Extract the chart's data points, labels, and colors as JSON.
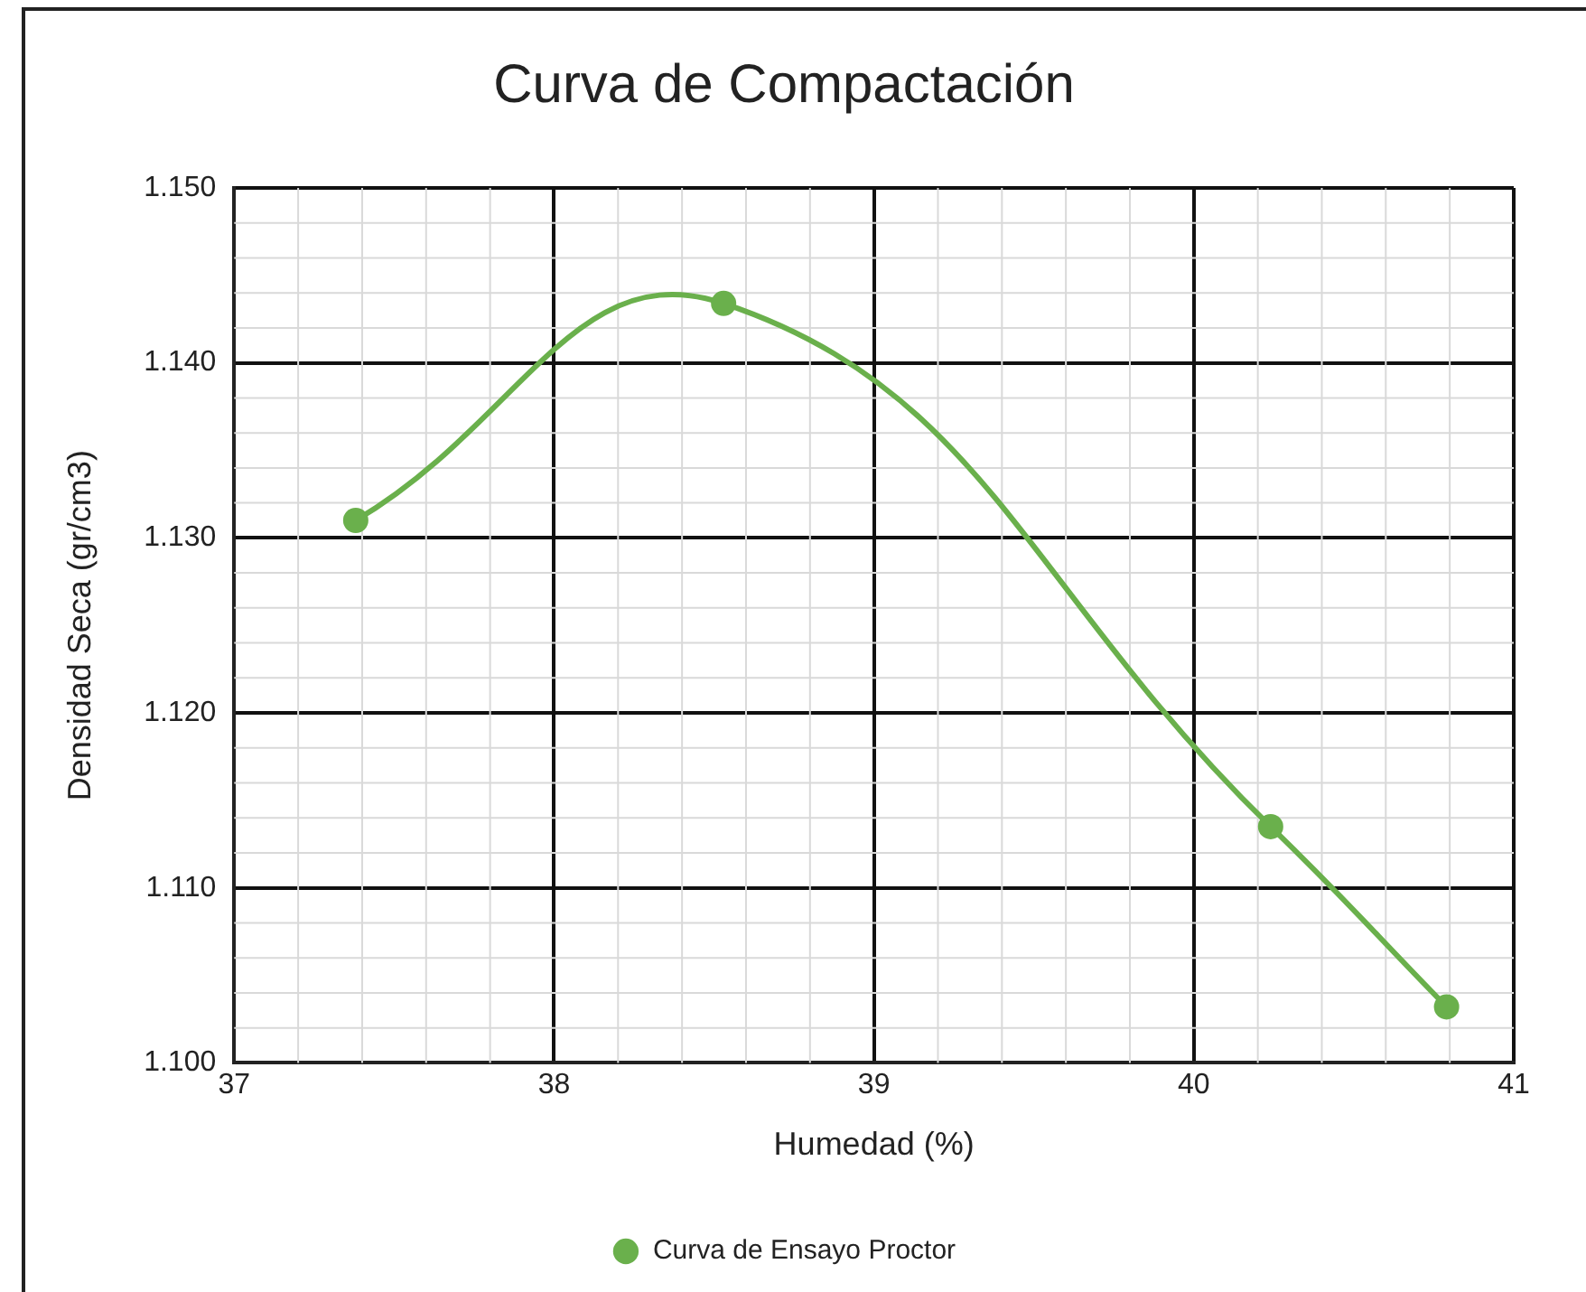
{
  "chart_data": {
    "type": "line",
    "title": "Curva de Compactación",
    "xlabel": "Humedad (%)",
    "ylabel": "Densidad Seca (gr/cm3)",
    "x": [
      37.38,
      38.53,
      40.24,
      40.79
    ],
    "series": [
      {
        "name": "Curva de Ensayo Proctor",
        "color": "#6ab04c",
        "values": [
          1.131,
          1.1434,
          1.1135,
          1.1032
        ]
      }
    ],
    "xlim": [
      37,
      41
    ],
    "xticks": [
      37,
      38,
      39,
      40,
      41
    ],
    "ylim": [
      1.1,
      1.15
    ],
    "yticks": [
      {
        "value": 1.1,
        "label": "1.100"
      },
      {
        "value": 1.11,
        "label": "1.110"
      },
      {
        "value": 1.12,
        "label": "1.120"
      },
      {
        "value": 1.13,
        "label": "1.130"
      },
      {
        "value": 1.14,
        "label": "1.140"
      },
      {
        "value": 1.15,
        "label": "1.150"
      }
    ],
    "grid": true,
    "legend": "bottom",
    "marker": "circle",
    "line_style": "solid"
  }
}
